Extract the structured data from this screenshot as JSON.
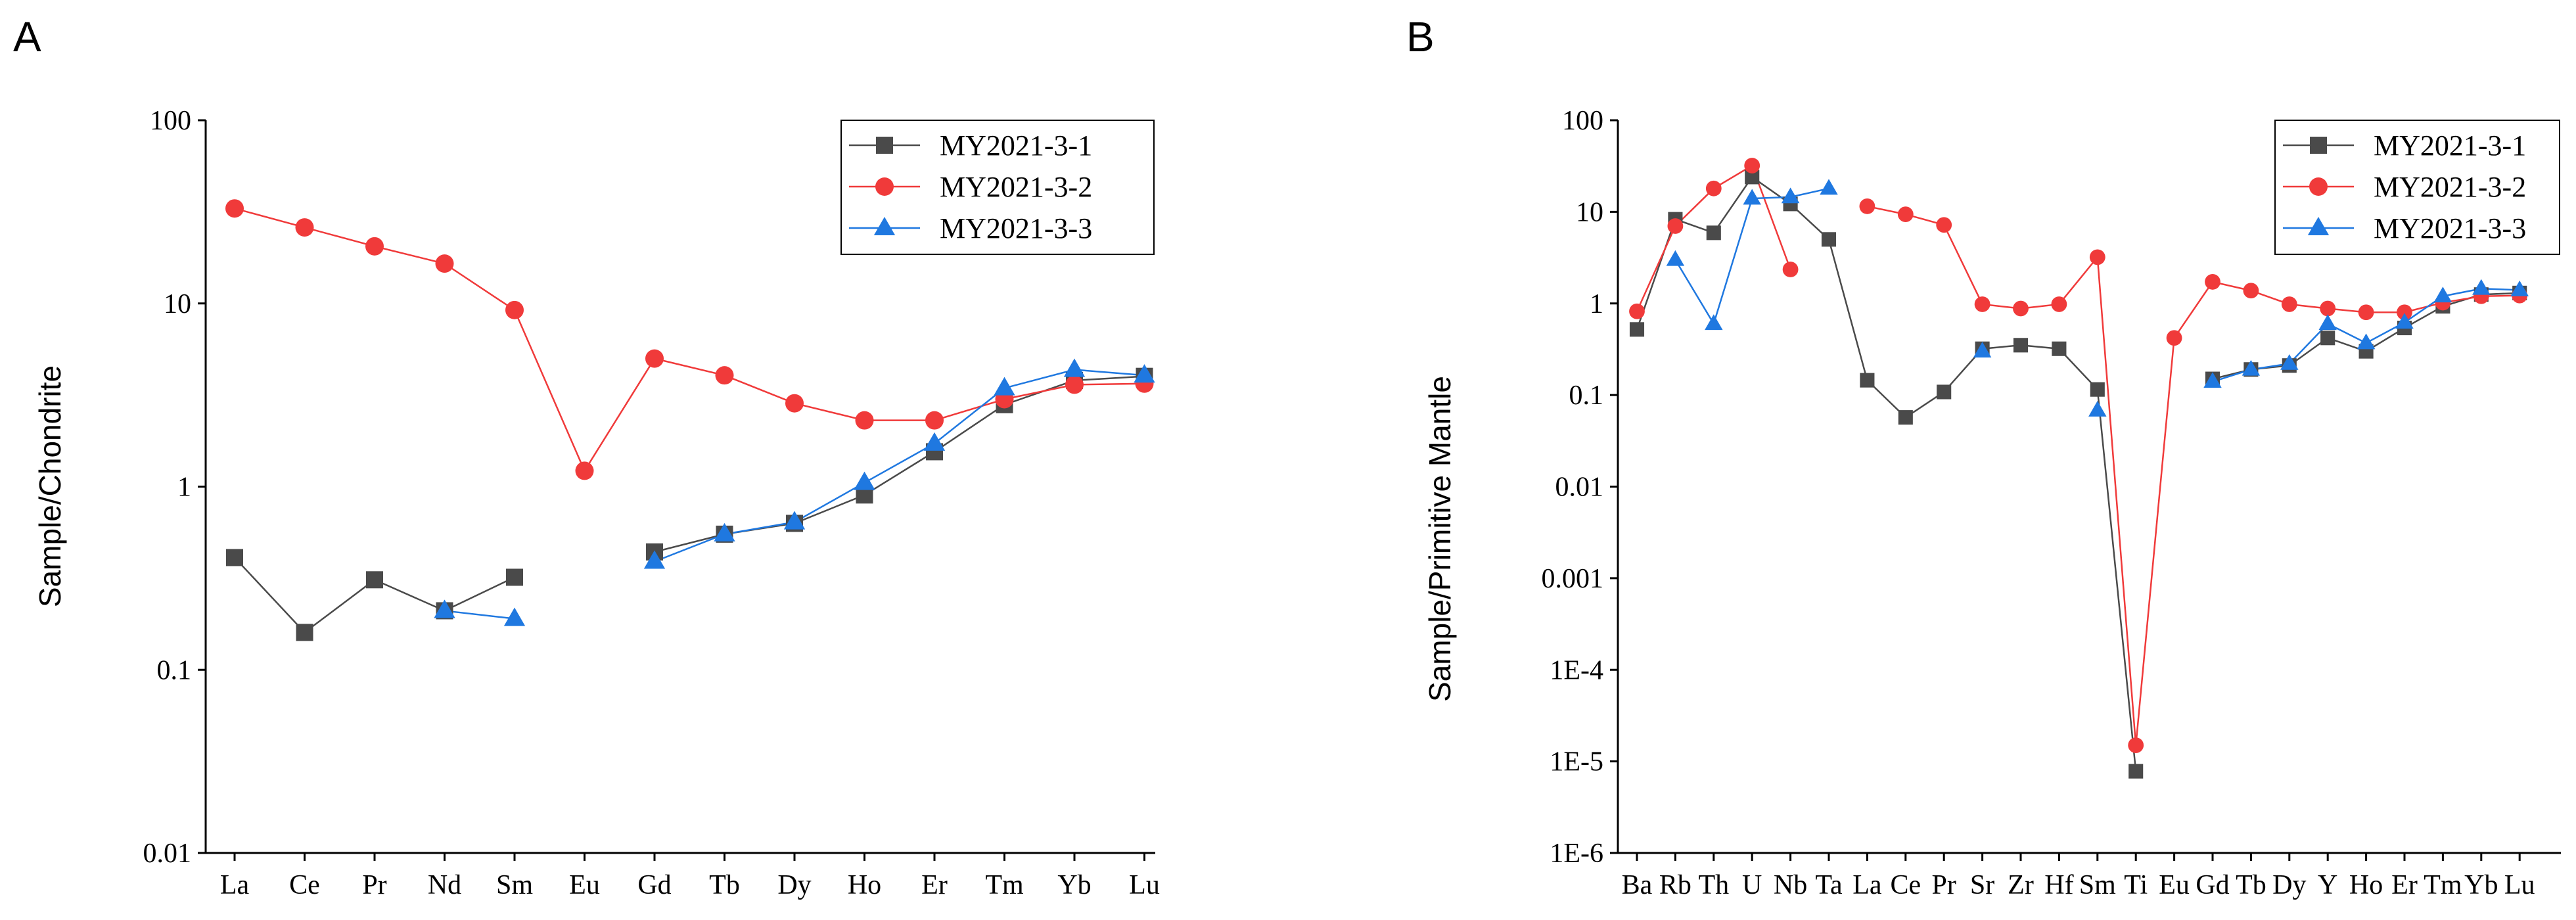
{
  "colors": {
    "s1": "#4a4a4a",
    "s2": "#f03a3a",
    "s3": "#1f78e0"
  },
  "chart_data": [
    {
      "type": "line",
      "panel": "A",
      "ylabel": "Sample/Chondrite",
      "yscale": "log",
      "ylim": [
        0.01,
        100
      ],
      "yticks": [
        "0.01",
        "0.1",
        "1",
        "10",
        "100"
      ],
      "categories": [
        "La",
        "Ce",
        "Pr",
        "Nd",
        "Sm",
        "Eu",
        "Gd",
        "Tb",
        "Dy",
        "Ho",
        "Er",
        "Tm",
        "Yb",
        "Lu"
      ],
      "legend_position": "top-right",
      "series": [
        {
          "name": "MY2021-3-1",
          "marker": "square",
          "values": [
            0.41,
            0.16,
            0.31,
            0.21,
            0.32,
            null,
            0.44,
            0.55,
            0.63,
            0.9,
            1.55,
            2.8,
            3.8,
            4.0
          ]
        },
        {
          "name": "MY2021-3-2",
          "marker": "circle",
          "values": [
            33,
            26,
            20.5,
            16.5,
            9.2,
            1.22,
            5.0,
            4.05,
            2.85,
            2.3,
            2.3,
            3.0,
            3.6,
            3.65
          ]
        },
        {
          "name": "MY2021-3-3",
          "marker": "triangle",
          "values": [
            null,
            null,
            null,
            0.21,
            0.19,
            null,
            0.39,
            0.55,
            0.64,
            1.05,
            1.72,
            3.45,
            4.35,
            4.05
          ]
        }
      ]
    },
    {
      "type": "line",
      "panel": "B",
      "ylabel": "Sample/Primitive Mantle",
      "yscale": "log",
      "ylim": [
        1e-06,
        100
      ],
      "yticks": [
        "1E-6",
        "1E-5",
        "1E-4",
        "0.001",
        "0.01",
        "0.1",
        "1",
        "10",
        "100"
      ],
      "categories": [
        "Ba",
        "Rb",
        "Th",
        "U",
        "Nb",
        "Ta",
        "La",
        "Ce",
        "Pr",
        "Sr",
        "Zr",
        "Hf",
        "Sm",
        "Ti",
        "Eu",
        "Gd",
        "Tb",
        "Dy",
        "Y",
        "Ho",
        "Er",
        "Tm",
        "Yb",
        "Lu"
      ],
      "legend_position": "top-right",
      "series": [
        {
          "name": "MY2021-3-1",
          "marker": "square",
          "values": [
            0.52,
            8.3,
            5.9,
            24,
            12.2,
            5.0,
            0.145,
            0.057,
            0.108,
            0.32,
            0.35,
            0.32,
            0.115,
            7.8e-06,
            null,
            0.15,
            0.19,
            0.21,
            0.42,
            0.3,
            0.54,
            0.93,
            1.25,
            1.3
          ]
        },
        {
          "name": "MY2021-3-2",
          "marker": "circle",
          "values": [
            0.82,
            7.0,
            18,
            32,
            2.35,
            null,
            11.5,
            9.4,
            7.2,
            0.98,
            0.88,
            0.98,
            3.2,
            1.5e-05,
            0.42,
            1.72,
            1.38,
            0.98,
            0.88,
            0.8,
            0.8,
            1.02,
            1.2,
            1.22
          ]
        },
        {
          "name": "MY2021-3-3",
          "marker": "triangle",
          "values": [
            null,
            3.0,
            0.6,
            14,
            14.5,
            18,
            null,
            null,
            null,
            0.3,
            null,
            null,
            0.068,
            null,
            null,
            0.14,
            0.19,
            0.22,
            0.6,
            0.37,
            0.62,
            1.2,
            1.45,
            1.4
          ]
        }
      ]
    }
  ]
}
